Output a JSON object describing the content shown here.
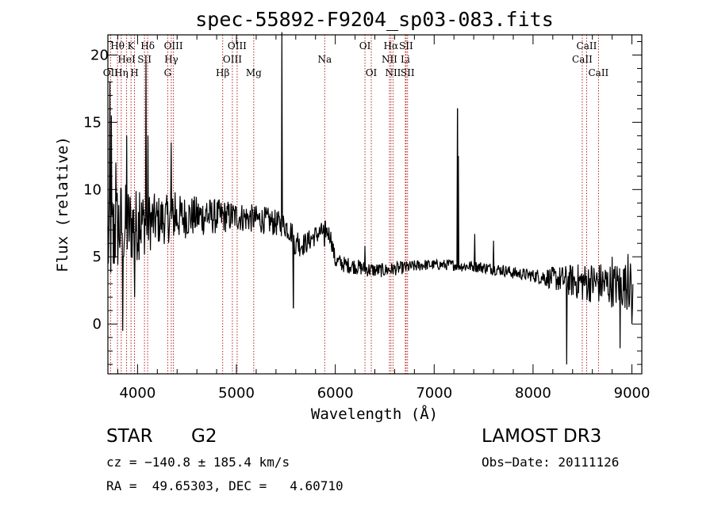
{
  "chart_data": {
    "type": "line",
    "title": "spec-55892-F9204_sp03-083.fits",
    "xlabel": "Wavelength (Å)",
    "ylabel": "Flux (relative)",
    "xlim": [
      3700,
      9100
    ],
    "ylim": [
      -3.7,
      21.5
    ],
    "xticks": [
      4000,
      5000,
      6000,
      7000,
      8000,
      9000
    ],
    "yticks": [
      0,
      5,
      10,
      15
    ],
    "ytick_labels": [
      "0",
      "5",
      "10",
      "15"
    ],
    "top_ytick_label": "20",
    "grid": false,
    "line_color": "#000000",
    "marker_color": "#b22222",
    "series": [
      {
        "name": "flux",
        "anchors": [
          [
            3700,
            6.0
          ],
          [
            3800,
            7.2
          ],
          [
            3900,
            7.3
          ],
          [
            4000,
            7.4
          ],
          [
            4100,
            7.6
          ],
          [
            4200,
            7.7
          ],
          [
            4300,
            7.8
          ],
          [
            4400,
            7.9
          ],
          [
            4500,
            8.0
          ],
          [
            4600,
            8.0
          ],
          [
            4700,
            8.0
          ],
          [
            4800,
            8.0
          ],
          [
            4900,
            8.0
          ],
          [
            5000,
            8.0
          ],
          [
            5100,
            7.9
          ],
          [
            5200,
            7.8
          ],
          [
            5300,
            7.7
          ],
          [
            5400,
            7.5
          ],
          [
            5500,
            7.3
          ],
          [
            5560,
            6.8
          ],
          [
            5600,
            5.8
          ],
          [
            5700,
            6.0
          ],
          [
            5800,
            6.6
          ],
          [
            5900,
            7.0
          ],
          [
            5950,
            6.6
          ],
          [
            6000,
            4.7
          ],
          [
            6100,
            4.4
          ],
          [
            6200,
            4.3
          ],
          [
            6300,
            4.1
          ],
          [
            6400,
            4.0
          ],
          [
            6500,
            4.0
          ],
          [
            6600,
            4.1
          ],
          [
            6700,
            4.2
          ],
          [
            6800,
            4.3
          ],
          [
            6900,
            4.4
          ],
          [
            7000,
            4.4
          ],
          [
            7100,
            4.4
          ],
          [
            7200,
            4.4
          ],
          [
            7300,
            4.3
          ],
          [
            7400,
            4.3
          ],
          [
            7500,
            4.2
          ],
          [
            7600,
            4.1
          ],
          [
            7700,
            4.0
          ],
          [
            7800,
            3.8
          ],
          [
            7900,
            3.7
          ],
          [
            8000,
            3.6
          ],
          [
            8100,
            3.5
          ],
          [
            8200,
            3.4
          ],
          [
            8300,
            3.3
          ],
          [
            8400,
            3.2
          ],
          [
            8500,
            3.1
          ],
          [
            8600,
            3.1
          ],
          [
            8700,
            3.0
          ],
          [
            8800,
            2.9
          ],
          [
            8900,
            2.9
          ],
          [
            9000,
            2.8
          ]
        ],
        "spikes": [
          [
            3720,
            18.0
          ],
          [
            3735,
            15.5
          ],
          [
            3755,
            4.5
          ],
          [
            3780,
            12.0
          ],
          [
            3835,
            10.0
          ],
          [
            3850,
            -0.5
          ],
          [
            3890,
            14.0
          ],
          [
            3970,
            2.0
          ],
          [
            4020,
            9.8
          ],
          [
            4085,
            19.5
          ],
          [
            4105,
            14.0
          ],
          [
            4340,
            13.5
          ],
          [
            4380,
            9.8
          ],
          [
            4700,
            9.0
          ],
          [
            5460,
            21.8
          ],
          [
            5577,
            1.2
          ],
          [
            5620,
            6.8
          ],
          [
            5892,
            5.8
          ],
          [
            6300,
            5.8
          ],
          [
            7237,
            16.0
          ],
          [
            7245,
            12.5
          ],
          [
            7410,
            6.7
          ],
          [
            7600,
            6.2
          ],
          [
            8340,
            -3.0
          ],
          [
            8500,
            1.8
          ],
          [
            8800,
            5.0
          ],
          [
            8880,
            -1.8
          ],
          [
            8960,
            5.2
          ],
          [
            9000,
            0.0
          ]
        ],
        "noise": [
          [
            3700,
            2.5
          ],
          [
            4200,
            1.2
          ],
          [
            5000,
            0.7
          ],
          [
            5500,
            0.6
          ],
          [
            6000,
            0.4
          ],
          [
            7000,
            0.25
          ],
          [
            8000,
            0.3
          ],
          [
            8500,
            0.9
          ],
          [
            9100,
            1.2
          ]
        ]
      }
    ],
    "spectral_lines": [
      {
        "label": "Hθ",
        "x": 3797,
        "row": 1
      },
      {
        "label": "OII",
        "x": 3727,
        "row": 3
      },
      {
        "label": "HeI",
        "x": 3889,
        "row": 2
      },
      {
        "label": "Hη",
        "x": 3835,
        "row": 3
      },
      {
        "label": "K",
        "x": 3934,
        "row": 1
      },
      {
        "label": "H",
        "x": 3969,
        "row": 3
      },
      {
        "label": "SII",
        "x": 4070,
        "row": 2
      },
      {
        "label": "Hδ",
        "x": 4102,
        "row": 1
      },
      {
        "label": "OIII",
        "x": 4363,
        "row": 1
      },
      {
        "label": "Hγ",
        "x": 4341,
        "row": 2
      },
      {
        "label": "G",
        "x": 4305,
        "row": 3
      },
      {
        "label": "Hβ",
        "x": 4861,
        "row": 3
      },
      {
        "label": "OIII",
        "x": 5007,
        "row": 1
      },
      {
        "label": "OIII",
        "x": 4959,
        "row": 2
      },
      {
        "label": "Mg",
        "x": 5175,
        "row": 3
      },
      {
        "label": "Na",
        "x": 5893,
        "row": 2
      },
      {
        "label": "OI",
        "x": 6300,
        "row": 1
      },
      {
        "label": "OI",
        "x": 6364,
        "row": 3
      },
      {
        "label": "Hα",
        "x": 6563,
        "row": 1
      },
      {
        "label": "NII",
        "x": 6548,
        "row": 2
      },
      {
        "label": "NII",
        "x": 6584,
        "row": 3
      },
      {
        "label": "SII",
        "x": 6716,
        "row": 1
      },
      {
        "label": "Li",
        "x": 6708,
        "row": 2
      },
      {
        "label": "SII",
        "x": 6731,
        "row": 3
      },
      {
        "label": "CaII",
        "x": 8542,
        "row": 1
      },
      {
        "label": "CaII",
        "x": 8498,
        "row": 2
      },
      {
        "label": "CaII",
        "x": 8662,
        "row": 3
      }
    ]
  },
  "info": {
    "object_type": "STAR",
    "subclass": "G2",
    "survey": "LAMOST DR3",
    "cz": "cz = −140.8 ± 185.4 km/s",
    "obs_date": "Obs−Date: 20111126",
    "coords": "RA =  49.65303, DEC =   4.60710"
  }
}
